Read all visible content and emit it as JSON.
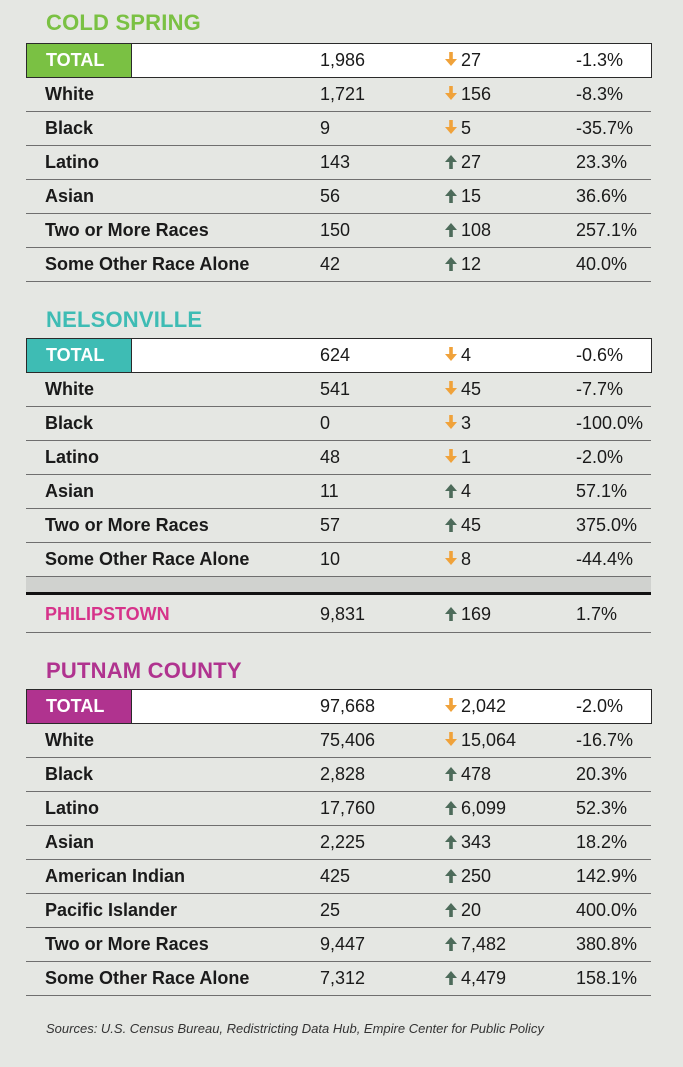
{
  "colors": {
    "cold_spring": "#7ac143",
    "nelsonville": "#3ebcb4",
    "putnam": "#b0338f",
    "philipstown": "#d6338a",
    "arrow_down": "#f0a23a",
    "arrow_up": "#4d6b5a"
  },
  "sections": [
    {
      "title": "COLD SPRING",
      "total": {
        "label": "TOTAL",
        "value": "1,986",
        "direction": "down",
        "change": "27",
        "pct": "-1.3%"
      },
      "rows": [
        {
          "label": "White",
          "value": "1,721",
          "direction": "down",
          "change": "156",
          "pct": "-8.3%"
        },
        {
          "label": "Black",
          "value": "9",
          "direction": "down",
          "change": "5",
          "pct": "-35.7%"
        },
        {
          "label": "Latino",
          "value": "143",
          "direction": "up",
          "change": "27",
          "pct": "23.3%"
        },
        {
          "label": "Asian",
          "value": "56",
          "direction": "up",
          "change": "15",
          "pct": "36.6%"
        },
        {
          "label": "Two or More Races",
          "value": "150",
          "direction": "up",
          "change": "108",
          "pct": "257.1%"
        },
        {
          "label": "Some Other Race Alone",
          "value": "42",
          "direction": "up",
          "change": "12",
          "pct": "40.0%"
        }
      ]
    },
    {
      "title": "NELSONVILLE",
      "total": {
        "label": "TOTAL",
        "value": "624",
        "direction": "down",
        "change": "4",
        "pct": "-0.6%"
      },
      "rows": [
        {
          "label": "White",
          "value": "541",
          "direction": "down",
          "change": "45",
          "pct": "-7.7%"
        },
        {
          "label": "Black",
          "value": "0",
          "direction": "down",
          "change": "3",
          "pct": "-100.0%"
        },
        {
          "label": "Latino",
          "value": "48",
          "direction": "down",
          "change": "1",
          "pct": "-2.0%"
        },
        {
          "label": "Asian",
          "value": "11",
          "direction": "up",
          "change": "4",
          "pct": "57.1%"
        },
        {
          "label": "Two or More Races",
          "value": "57",
          "direction": "up",
          "change": "45",
          "pct": "375.0%"
        },
        {
          "label": "Some Other Race Alone",
          "value": "10",
          "direction": "down",
          "change": "8",
          "pct": "-44.4%"
        }
      ]
    },
    {
      "title": "PUTNAM COUNTY",
      "total": {
        "label": "TOTAL",
        "value": "97,668",
        "direction": "down",
        "change": "2,042",
        "pct": "-2.0%"
      },
      "rows": [
        {
          "label": "White",
          "value": "75,406",
          "direction": "down",
          "change": "15,064",
          "pct": "-16.7%"
        },
        {
          "label": "Black",
          "value": "2,828",
          "direction": "up",
          "change": "478",
          "pct": "20.3%"
        },
        {
          "label": "Latino",
          "value": "17,760",
          "direction": "up",
          "change": "6,099",
          "pct": "52.3%"
        },
        {
          "label": "Asian",
          "value": "2,225",
          "direction": "up",
          "change": "343",
          "pct": "18.2%"
        },
        {
          "label": "American Indian",
          "value": "425",
          "direction": "up",
          "change": "250",
          "pct": "142.9%"
        },
        {
          "label": "Pacific Islander",
          "value": "25",
          "direction": "up",
          "change": "20",
          "pct": "400.0%"
        },
        {
          "label": "Two or More Races",
          "value": "9,447",
          "direction": "up",
          "change": "7,482",
          "pct": "380.8%"
        },
        {
          "label": "Some Other Race Alone",
          "value": "7,312",
          "direction": "up",
          "change": "4,479",
          "pct": "158.1%"
        }
      ]
    }
  ],
  "philipstown": {
    "label": "PHILIPSTOWN",
    "value": "9,831",
    "direction": "up",
    "change": "169",
    "pct": "1.7%"
  },
  "source": "Sources: U.S. Census Bureau, Redistricting Data Hub, Empire Center for Public Policy"
}
